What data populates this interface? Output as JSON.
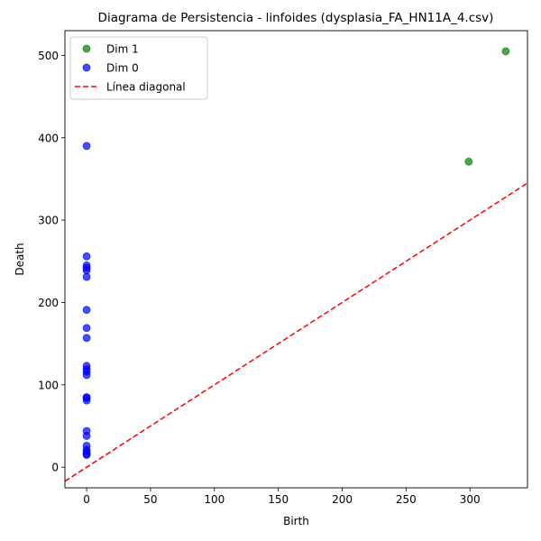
{
  "chart_data": {
    "type": "scatter",
    "title": "Diagrama de Persistencia - linfoides (dysplasia_FA_HN11A_4.csv)",
    "xlabel": "Birth",
    "ylabel": "Death",
    "xlim": [
      -17,
      345
    ],
    "ylim": [
      -25,
      530
    ],
    "xticks": [
      0,
      50,
      100,
      150,
      200,
      250,
      300
    ],
    "yticks": [
      0,
      100,
      200,
      300,
      400,
      500
    ],
    "grid": false,
    "legend_position": "top-left",
    "series": [
      {
        "name": "Dim 1",
        "color": "#008000",
        "points": [
          [
            299,
            371
          ],
          [
            328,
            505
          ]
        ]
      },
      {
        "name": "Dim 0",
        "color": "#0000ff",
        "points": [
          [
            0,
            390
          ],
          [
            0,
            256
          ],
          [
            0,
            245
          ],
          [
            0,
            242
          ],
          [
            0,
            239
          ],
          [
            0,
            231
          ],
          [
            0,
            191
          ],
          [
            0,
            169
          ],
          [
            0,
            157
          ],
          [
            0,
            123
          ],
          [
            0,
            119
          ],
          [
            0,
            116
          ],
          [
            0,
            112
          ],
          [
            0,
            85
          ],
          [
            0,
            84
          ],
          [
            0,
            81
          ],
          [
            0,
            44
          ],
          [
            0,
            38
          ],
          [
            0,
            26
          ],
          [
            0,
            21
          ],
          [
            0,
            19
          ],
          [
            0,
            16
          ],
          [
            0,
            15
          ]
        ]
      }
    ],
    "reference_line": {
      "name": "Línea diagonal",
      "color": "#ff0000",
      "style": "dashed"
    }
  }
}
